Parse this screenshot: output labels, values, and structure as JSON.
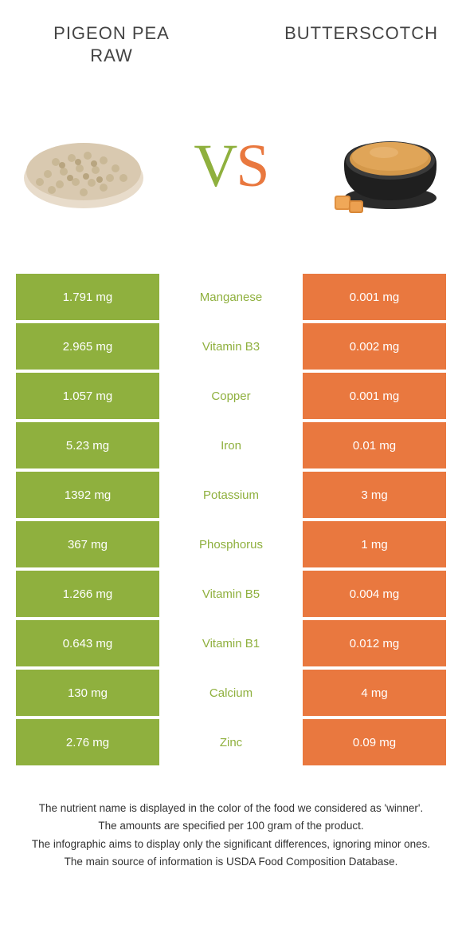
{
  "colors": {
    "left": "#8fb03e",
    "right": "#e9783f",
    "bg": "#ffffff",
    "title": "#444444"
  },
  "food_left": {
    "line1": "Pigeon pea",
    "line2": "raw"
  },
  "food_right": {
    "line1": "Butterscotch"
  },
  "vs": {
    "v": "V",
    "s": "S"
  },
  "rows": [
    {
      "left": "1.791 mg",
      "name": "Manganese",
      "right": "0.001 mg",
      "winner": "left"
    },
    {
      "left": "2.965 mg",
      "name": "Vitamin B3",
      "right": "0.002 mg",
      "winner": "left"
    },
    {
      "left": "1.057 mg",
      "name": "Copper",
      "right": "0.001 mg",
      "winner": "left"
    },
    {
      "left": "5.23 mg",
      "name": "Iron",
      "right": "0.01 mg",
      "winner": "left"
    },
    {
      "left": "1392 mg",
      "name": "Potassium",
      "right": "3 mg",
      "winner": "left"
    },
    {
      "left": "367 mg",
      "name": "Phosphorus",
      "right": "1 mg",
      "winner": "left"
    },
    {
      "left": "1.266 mg",
      "name": "Vitamin B5",
      "right": "0.004 mg",
      "winner": "left"
    },
    {
      "left": "0.643 mg",
      "name": "Vitamin B1",
      "right": "0.012 mg",
      "winner": "left"
    },
    {
      "left": "130 mg",
      "name": "Calcium",
      "right": "4 mg",
      "winner": "left"
    },
    {
      "left": "2.76 mg",
      "name": "Zinc",
      "right": "0.09 mg",
      "winner": "left"
    }
  ],
  "footnotes": [
    "The nutrient name is displayed in the color of the food we considered as 'winner'.",
    "The amounts are specified per 100 gram of the product.",
    "The infographic aims to display only the significant differences, ignoring minor ones.",
    "The main source of information is USDA Food Composition Database."
  ]
}
